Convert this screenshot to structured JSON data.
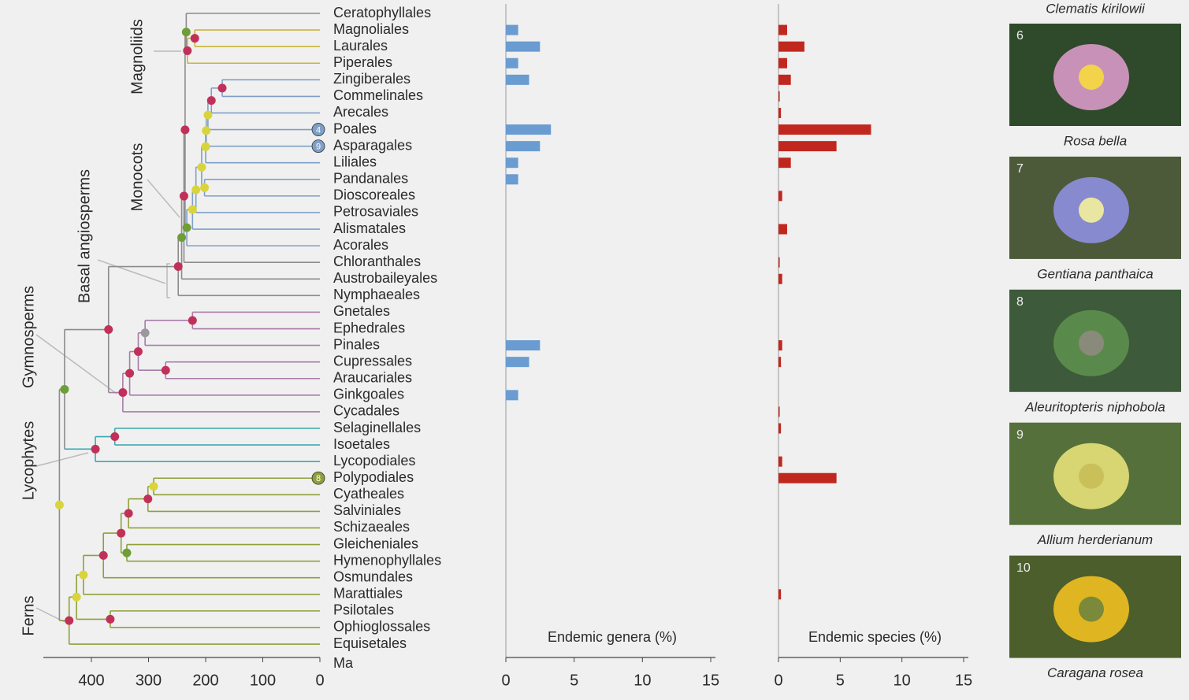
{
  "chart_data": [
    {
      "type": "tree",
      "x_label": "Ma",
      "xlim": [
        480,
        0
      ],
      "xticks": [
        400,
        300,
        200,
        100,
        0
      ],
      "categories": [
        "Ceratophyllales",
        "Magnoliales",
        "Laurales",
        "Piperales",
        "Zingiberales",
        "Commelinales",
        "Arecales",
        "Poales",
        "Asparagales",
        "Liliales",
        "Pandanales",
        "Dioscoreales",
        "Petrosaviales",
        "Alismatales",
        "Acorales",
        "Chloranthales",
        "Austrobaileyales",
        "Nymphaeales",
        "Gnetales",
        "Ephedrales",
        "Pinales",
        "Cupressales",
        "Araucariales",
        "Ginkgoales",
        "Cycadales",
        "Selaginellales",
        "Isoetales",
        "Lycopodiales",
        "Polypodiales",
        "Cyatheales",
        "Salviniales",
        "Schizaeales",
        "Gleicheniales",
        "Hymenophyllales",
        "Osmundales",
        "Marattiales",
        "Psilotales",
        "Ophioglossales",
        "Equisetales"
      ],
      "tip_labels": [
        null,
        null,
        null,
        null,
        null,
        null,
        null,
        "4",
        "9",
        null,
        null,
        null,
        null,
        null,
        null,
        null,
        null,
        null,
        null,
        null,
        null,
        null,
        null,
        null,
        null,
        null,
        null,
        null,
        "8",
        null,
        null,
        null,
        null,
        null,
        null,
        null,
        null,
        null,
        null
      ],
      "clade_labels": [
        "Magnoliids",
        "Monocots",
        "Basal angiosperms",
        "Gymnosperms",
        "Lycophytes",
        "Ferns"
      ],
      "tree": {
        "age": 456,
        "dot": "#d9d43b",
        "color": "#8c8c8c",
        "children": [
          {
            "age": 447,
            "dot": "#6e9e35",
            "children": [
              {
                "age": 370,
                "dot": "#c2305a",
                "children": [
                  {
                    "age": 248,
                    "dot": "#c2305a",
                    "children": [
                      {
                        "age": 242,
                        "dot": "#6e9e35",
                        "children": [
                          {
                            "age": 238,
                            "dot": "#c2305a",
                            "children": [
                              {
                                "age": 236,
                                "dot": "#c2305a",
                                "children": [
                                  {
                                    "age": 234,
                                    "dot": "#6e9e35",
                                    "children": [
                                      {
                                        "age": 0
                                      },
                                      {
                                        "age": 232,
                                        "dot": "#c2305a",
                                        "color": "#c9b53c",
                                        "children": [
                                          {
                                            "age": 219,
                                            "dot": "#c2305a",
                                            "children": [
                                              {
                                                "age": 0
                                              },
                                              {
                                                "age": 0
                                              }
                                            ]
                                          },
                                          {
                                            "age": 0
                                          }
                                        ]
                                      }
                                    ]
                                  },
                                  {
                                    "age": 233,
                                    "dot": "#6e9e35",
                                    "color": "#7f9fc7",
                                    "children": [
                                      {
                                        "age": 223,
                                        "dot": "#d9d43b",
                                        "children": [
                                          {
                                            "age": 217,
                                            "dot": "#d9d43b",
                                            "children": [
                                              {
                                                "age": 207,
                                                "dot": "#d9d43b",
                                                "children": [
                                                  {
                                                    "age": 200,
                                                    "dot": "#d9d43b",
                                                    "children": [
                                                      {
                                                        "age": 199,
                                                        "dot": "#d9d43b",
                                                        "children": [
                                                          {
                                                            "age": 196,
                                                            "dot": "#d9d43b",
                                                            "children": [
                                                              {
                                                                "age": 190,
                                                                "dot": "#c2305a",
                                                                "children": [
                                                                  {
                                                                    "age": 171,
                                                                    "dot": "#c2305a",
                                                                    "children": [
                                                                      {
                                                                        "age": 0
                                                                      },
                                                                      {
                                                                        "age": 0
                                                                      }
                                                                    ]
                                                                  },
                                                                  {
                                                                    "age": 0
                                                                  }
                                                                ]
                                                              },
                                                              {
                                                                "age": 0
                                                              }
                                                            ]
                                                          },
                                                          {
                                                            "age": 0
                                                          }
                                                        ]
                                                      },
                                                      {
                                                        "age": 0
                                                      }
                                                    ]
                                                  },
                                                  {
                                                    "age": 202,
                                                    "dot": "#d9d43b",
                                                    "children": [
                                                      {
                                                        "age": 0
                                                      },
                                                      {
                                                        "age": 0
                                                      }
                                                    ]
                                                  }
                                                ]
                                              },
                                              {
                                                "age": 0
                                              }
                                            ]
                                          },
                                          {
                                            "age": 0
                                          }
                                        ]
                                      },
                                      {
                                        "age": 0
                                      }
                                    ]
                                  }
                                ]
                              },
                              {
                                "age": 0
                              }
                            ]
                          },
                          {
                            "age": 0
                          }
                        ]
                      },
                      {
                        "age": 0
                      }
                    ]
                  },
                  {
                    "age": 345,
                    "dot": "#c2305a",
                    "color": "#a77ba8",
                    "children": [
                      {
                        "age": 333,
                        "dot": "#c2305a",
                        "children": [
                          {
                            "age": 318,
                            "dot": "#c2305a",
                            "children": [
                              {
                                "age": 306,
                                "dot": "#9a9a9a",
                                "children": [
                                  {
                                    "age": 223,
                                    "dot": "#c2305a",
                                    "children": [
                                      {
                                        "age": 0
                                      },
                                      {
                                        "age": 0
                                      }
                                    ]
                                  },
                                  {
                                    "age": 0
                                  }
                                ]
                              },
                              {
                                "age": 270,
                                "dot": "#c2305a",
                                "children": [
                                  {
                                    "age": 0
                                  },
                                  {
                                    "age": 0
                                  }
                                ]
                              }
                            ]
                          },
                          {
                            "age": 0
                          }
                        ]
                      },
                      {
                        "age": 0
                      }
                    ]
                  }
                ]
              },
              {
                "age": 393,
                "dot": "#c2305a",
                "color": "#3aa9b0",
                "children": [
                  {
                    "age": 359,
                    "dot": "#c2305a",
                    "children": [
                      {
                        "age": 0
                      },
                      {
                        "age": 0
                      }
                    ]
                  },
                  {
                    "age": 0
                  }
                ]
              }
            ]
          },
          {
            "age": 439,
            "dot": "#c2305a",
            "color": "#8ea03a",
            "children": [
              {
                "age": 426,
                "dot": "#d9d43b",
                "children": [
                  {
                    "age": 414,
                    "dot": "#d9d43b",
                    "children": [
                      {
                        "age": 379,
                        "dot": "#c2305a",
                        "children": [
                          {
                            "age": 348,
                            "dot": "#c2305a",
                            "children": [
                              {
                                "age": 335,
                                "dot": "#c2305a",
                                "children": [
                                  {
                                    "age": 301,
                                    "dot": "#c2305a",
                                    "children": [
                                      {
                                        "age": 291,
                                        "dot": "#d9d43b",
                                        "children": [
                                          {
                                            "age": 0
                                          },
                                          {
                                            "age": 0
                                          }
                                        ]
                                      },
                                      {
                                        "age": 0
                                      }
                                    ]
                                  },
                                  {
                                    "age": 0
                                  }
                                ]
                              },
                              {
                                "age": 338,
                                "dot": "#6e9e35",
                                "children": [
                                  {
                                    "age": 0
                                  },
                                  {
                                    "age": 0
                                  }
                                ]
                              }
                            ]
                          },
                          {
                            "age": 0
                          }
                        ]
                      },
                      {
                        "age": 0
                      }
                    ]
                  },
                  {
                    "age": 367,
                    "dot": "#c2305a",
                    "children": [
                      {
                        "age": 0
                      },
                      {
                        "age": 0
                      }
                    ]
                  }
                ]
              },
              {
                "age": 0
              }
            ]
          }
        ]
      }
    },
    {
      "type": "barh",
      "x_label": "Endemic genera (%)",
      "color": "#6a9bd1",
      "xlim": [
        0,
        15
      ],
      "xticks": [
        0,
        5,
        10,
        15
      ],
      "values": [
        0,
        0.9,
        2.5,
        0.9,
        1.7,
        0,
        0,
        3.3,
        2.5,
        0.9,
        0.9,
        0,
        0,
        0,
        0,
        0,
        0,
        0,
        0,
        0,
        2.5,
        1.7,
        0,
        0.9,
        0,
        0,
        0,
        0,
        0,
        0,
        0,
        0,
        0,
        0,
        0,
        0,
        0,
        0,
        0
      ]
    },
    {
      "type": "barh",
      "x_label": "Endemic species (%)",
      "color": "#c0281f",
      "xlim": [
        0,
        15
      ],
      "xticks": [
        0,
        5,
        10,
        15
      ],
      "values": [
        0,
        0.7,
        2.1,
        0.7,
        1.0,
        0.1,
        0.2,
        7.5,
        4.7,
        1.0,
        0,
        0.3,
        0,
        0.7,
        0,
        0.1,
        0.3,
        0,
        0,
        0,
        0.3,
        0.2,
        0,
        0,
        0.1,
        0.2,
        0,
        0.3,
        4.7,
        0,
        0,
        0,
        0,
        0,
        0,
        0.2,
        0,
        0,
        0
      ]
    }
  ],
  "photos": {
    "top_caption": "Clematis kirilowii",
    "items": [
      {
        "number": "6",
        "caption": "Rosa bella"
      },
      {
        "number": "7",
        "caption": "Gentiana panthaica"
      },
      {
        "number": "8",
        "caption": "Aleuritopteris niphobola"
      },
      {
        "number": "9",
        "caption": "Allium herderianum"
      },
      {
        "number": "10",
        "caption": "Caragana rosea"
      }
    ]
  }
}
